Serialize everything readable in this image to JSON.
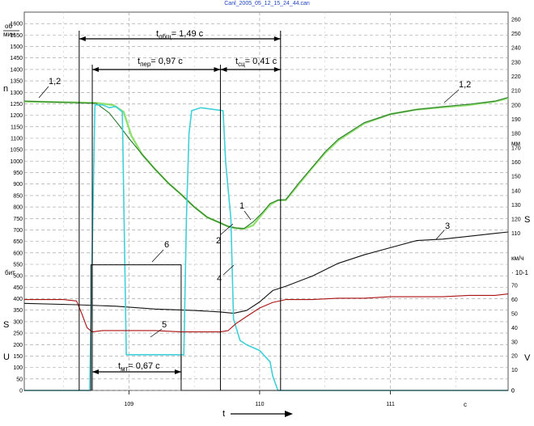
{
  "file_title": "Canl_2005_05_12_15_24_44.can",
  "chart_data": {
    "type": "line",
    "grid": true,
    "x_axis": {
      "range": [
        108.2,
        111.9
      ],
      "ticks": [
        "109",
        "110",
        "111"
      ],
      "unit": "c",
      "label": "t"
    },
    "left_axis": {
      "label": "n",
      "unit_top": "об",
      "unit_bottom": "мин",
      "range": [
        0,
        1650
      ],
      "ticks": [
        "1600",
        "1550",
        "1500",
        "1450",
        "1400",
        "1350",
        "1300",
        "1250",
        "1200",
        "1150",
        "1100",
        "1050",
        "1000",
        "950",
        "900",
        "850",
        "800",
        "750",
        "700",
        "650",
        "600",
        "550",
        "500",
        "450",
        "400",
        "350",
        "300",
        "250",
        "200",
        "150",
        "100",
        "50",
        "0"
      ]
    },
    "left_lower_labels": {
      "s_label": "S",
      "u_label": "U",
      "bar_unit": "бит"
    },
    "right_axis": {
      "label": "S",
      "unit": "мм",
      "range": [
        0,
        265
      ],
      "ticks": [
        "260",
        "250",
        "240",
        "230",
        "220",
        "210",
        "200",
        "190",
        "180",
        "170",
        "160",
        "150",
        "140",
        "130",
        "120",
        "110",
        "100",
        "90",
        "80",
        "70",
        "60",
        "50",
        "40",
        "30",
        "20",
        "10",
        "0"
      ]
    },
    "right_lower_labels": {
      "v_label": "V",
      "v_unit": "км/ч",
      "v_scale": "· 10-1",
      "v_ticks": [
        "70",
        "60",
        "50",
        "40",
        "30",
        "20",
        "10"
      ]
    },
    "series": [
      {
        "name": "1",
        "color": "#90e070",
        "scale": "n",
        "x": [
          108.2,
          108.4,
          108.6,
          108.75,
          108.88,
          108.96,
          109.02,
          109.1,
          109.2,
          109.3,
          109.4,
          109.5,
          109.6,
          109.7,
          109.76,
          109.82,
          109.88,
          109.95,
          110.02,
          110.08,
          110.14,
          110.2,
          110.3,
          110.4,
          110.5,
          110.6,
          110.8,
          111.0,
          111.2,
          111.4,
          111.6,
          111.8,
          111.9
        ],
        "y": [
          1260,
          1258,
          1256,
          1254,
          1245,
          1215,
          1110,
          1030,
          965,
          905,
          855,
          800,
          755,
          730,
          715,
          708,
          705,
          720,
          770,
          810,
          830,
          830,
          900,
          970,
          1035,
          1090,
          1165,
          1205,
          1225,
          1235,
          1245,
          1260,
          1275
        ]
      },
      {
        "name": "2",
        "color": "#2e7d2e",
        "scale": "n",
        "x": [
          108.2,
          108.4,
          108.6,
          108.75,
          108.85,
          108.92,
          109.0,
          109.1,
          109.2,
          109.3,
          109.4,
          109.5,
          109.6,
          109.7,
          109.76,
          109.82,
          109.88,
          109.95,
          110.02,
          110.08,
          110.14,
          110.2,
          110.3,
          110.4,
          110.5,
          110.6,
          110.8,
          111.0,
          111.2,
          111.4,
          111.6,
          111.8,
          111.9
        ],
        "y": [
          1262,
          1258,
          1255,
          1252,
          1210,
          1160,
          1100,
          1030,
          965,
          905,
          855,
          800,
          755,
          730,
          715,
          708,
          706,
          735,
          775,
          815,
          830,
          832,
          905,
          972,
          1040,
          1095,
          1168,
          1205,
          1225,
          1238,
          1248,
          1262,
          1278
        ]
      },
      {
        "name": "3",
        "color": "#111111",
        "scale": "s",
        "x": [
          108.2,
          108.6,
          108.9,
          109.2,
          109.5,
          109.7,
          109.8,
          109.9,
          110.0,
          110.1,
          110.2,
          110.4,
          110.6,
          110.8,
          111.0,
          111.2,
          111.4,
          111.6,
          111.8,
          111.9
        ],
        "y": [
          61,
          60,
          59,
          57,
          56,
          55,
          54,
          56,
          62,
          70,
          73,
          80,
          89,
          95,
          100,
          105,
          106,
          108,
          110,
          111
        ]
      },
      {
        "name": "4",
        "color": "#3fd0d8",
        "scale": "u",
        "x": [
          108.2,
          108.5,
          108.62,
          108.7,
          108.74,
          108.8,
          108.85,
          108.9,
          108.95,
          108.98,
          109.2,
          109.42,
          109.44,
          109.46,
          109.48,
          109.55,
          109.72,
          109.74,
          109.78,
          109.8,
          109.85,
          109.9,
          110.0,
          110.08,
          110.1,
          110.12,
          110.14,
          110.3,
          110.6,
          111.0,
          111.5,
          111.9
        ],
        "y": [
          0,
          0,
          0,
          0,
          200,
          200,
          198,
          199,
          195,
          25,
          25,
          25,
          120,
          180,
          196,
          198,
          196,
          160,
          120,
          50,
          35,
          32,
          28,
          20,
          10,
          5,
          0,
          0,
          0,
          0,
          0,
          0
        ]
      },
      {
        "name": "5",
        "color": "#aa1111",
        "scale": "v",
        "x": [
          108.2,
          108.5,
          108.6,
          108.64,
          108.68,
          108.72,
          108.8,
          109.0,
          109.2,
          109.4,
          109.6,
          109.7,
          109.76,
          109.82,
          109.9,
          110.0,
          110.1,
          110.2,
          110.4,
          110.6,
          110.8,
          111.0,
          111.2,
          111.4,
          111.6,
          111.8,
          111.9
        ],
        "y": [
          60,
          60,
          59,
          50,
          40,
          37,
          38,
          38,
          38,
          37,
          37,
          37,
          38,
          43,
          48,
          54,
          58,
          60,
          60,
          61,
          61,
          62,
          62,
          62,
          63,
          63,
          64
        ]
      },
      {
        "name": "6",
        "color": "#222222",
        "scale": "u",
        "kind": "step",
        "x": [
          108.2,
          108.71,
          108.71,
          109.4,
          109.4,
          111.9
        ],
        "y": [
          0,
          0,
          88,
          88,
          0,
          0
        ]
      }
    ],
    "annotations": {
      "t_total": "= 1,49 с",
      "t_per": "= 0,97 с",
      "t_sc": "= 0,41 с",
      "t_mt": "= 0,67 с",
      "labels": [
        "1,2",
        "1,2",
        "1",
        "2",
        "3",
        "4",
        "5",
        "6"
      ]
    },
    "markers": {
      "t0": 108.62,
      "t1": 108.72,
      "t2": 109.7,
      "t3": 110.16,
      "tmt_end": 109.4
    }
  }
}
